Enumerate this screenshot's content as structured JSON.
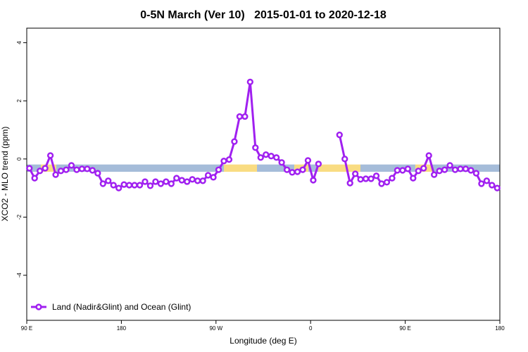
{
  "chart_data": {
    "type": "line",
    "title": "0-5N March (Ver 10)   2015-01-01 to 2020-12-18",
    "x_label": "Longitude (deg E)",
    "y_label": "XCO2 - MLO trend (ppm)",
    "xlim": [
      90,
      540
    ],
    "ylim": [
      -5.55,
      4.5
    ],
    "xticks": [
      {
        "value": 90,
        "label": "90 E"
      },
      180,
      {
        "value": 270,
        "label": "90 W"
      },
      {
        "value": 360,
        "label": "0"
      },
      {
        "value": 450,
        "label": "90 E"
      },
      {
        "value": 540,
        "label": "180"
      }
    ],
    "yticks": [
      -4,
      -2,
      0,
      2,
      4
    ],
    "legend": "bottom-left",
    "surface_band": {
      "ylim": [
        -0.44,
        -0.19
      ],
      "segments": [
        {
          "from": 90,
          "to": 103.4,
          "color": "#a5bcd9"
        },
        {
          "from": 103.4,
          "to": 118.1,
          "color": "#f9dc82"
        },
        {
          "from": 118.1,
          "to": 277.5,
          "color": "#a5bcd9"
        },
        {
          "from": 277.5,
          "to": 309,
          "color": "#f9dc82"
        },
        {
          "from": 309,
          "to": 344.5,
          "color": "#a5bcd9"
        },
        {
          "from": 344.5,
          "to": 357.9,
          "color": "#f9dc82"
        },
        {
          "from": 357.9,
          "to": 367.2,
          "color": "#a5bcd9"
        },
        {
          "from": 367.2,
          "to": 407.4,
          "color": "#f9dc82"
        },
        {
          "from": 407.4,
          "to": 459.6,
          "color": "#a5bcd9"
        },
        {
          "from": 459.6,
          "to": 475.7,
          "color": "#f9dc82"
        },
        {
          "from": 475.7,
          "to": 540,
          "color": "#a5bcd9"
        }
      ]
    },
    "x": [
      92.5,
      97.5,
      102.5,
      107.5,
      112.5,
      117.5,
      122.5,
      127.5,
      132.5,
      137.5,
      142.5,
      147.5,
      152.5,
      157.5,
      162.5,
      167.5,
      172.5,
      177.5,
      182.5,
      187.5,
      192.5,
      197.5,
      202.5,
      207.5,
      212.5,
      217.5,
      222.5,
      227.5,
      232.5,
      237.5,
      242.5,
      247.5,
      252.5,
      257.5,
      262.5,
      267.5,
      272.5,
      277.5,
      282.5,
      287.5,
      292.5,
      297.5,
      302.5,
      307.5,
      312.5,
      317.5,
      322.5,
      327.5,
      332.5,
      337.5,
      342.5,
      347.5,
      352.5,
      357.5,
      362.5,
      367.5,
      372.5,
      377.5,
      382.5,
      387.5,
      392.5,
      397.5,
      402.5,
      407.5,
      412.5,
      417.5,
      422.5,
      427.5,
      432.5,
      437.5,
      442.5,
      447.5,
      452.5,
      457.5,
      462.5,
      467.5,
      472.5,
      477.5,
      482.5,
      487.5,
      492.5,
      497.5,
      502.5,
      507.5,
      512.5,
      517.5,
      522.5,
      527.5,
      532.5,
      537.5
    ],
    "series": [
      {
        "name": "Land (Nadir&Glint) and Ocean (Glint)",
        "color": "#a020f0",
        "values": [
          -0.32,
          -0.66,
          -0.41,
          -0.32,
          0.12,
          -0.54,
          -0.41,
          -0.37,
          -0.22,
          -0.37,
          -0.34,
          -0.34,
          -0.39,
          -0.49,
          -0.85,
          -0.75,
          -0.9,
          -1.0,
          -0.88,
          -0.9,
          -0.9,
          -0.9,
          -0.78,
          -0.92,
          -0.78,
          -0.85,
          -0.78,
          -0.85,
          -0.66,
          -0.73,
          -0.78,
          -0.7,
          -0.75,
          -0.75,
          -0.56,
          -0.63,
          -0.37,
          -0.07,
          -0.02,
          0.6,
          1.46,
          1.46,
          2.65,
          0.39,
          0.05,
          0.15,
          0.1,
          0.05,
          -0.12,
          -0.37,
          -0.46,
          -0.44,
          -0.37,
          -0.05,
          -0.73,
          -0.17,
          null,
          null,
          null,
          0.83,
          0.0,
          -0.83,
          -0.51,
          -0.7,
          -0.68,
          -0.68,
          -0.58,
          -0.85,
          -0.8,
          -0.66,
          -0.39,
          -0.39,
          -0.34,
          -0.66,
          -0.41,
          -0.32,
          0.12,
          -0.54,
          -0.41,
          -0.37,
          -0.22,
          -0.37,
          -0.34,
          -0.34,
          -0.39,
          -0.49,
          -0.85,
          -0.75,
          -0.9,
          -1.0
        ]
      }
    ]
  }
}
